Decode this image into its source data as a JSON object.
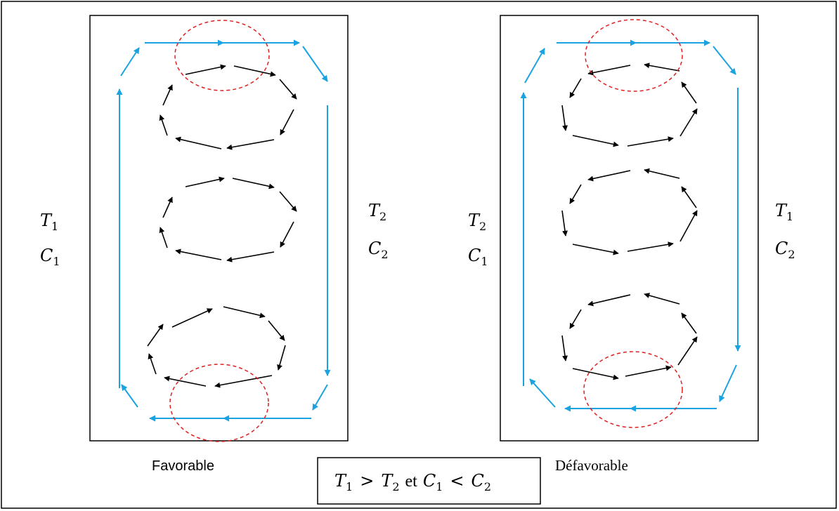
{
  "colors": {
    "circulation": "#1aa3e0",
    "vortex": "#000000",
    "highlight": "#e02020",
    "frame": "#000000"
  },
  "panels": [
    {
      "caption": "Favorable",
      "left_label": {
        "temp": "T",
        "temp_sub": "1",
        "conc": "C",
        "conc_sub": "1"
      },
      "right_label": {
        "temp": "T",
        "temp_sub": "2",
        "conc": "C",
        "conc_sub": "2"
      }
    },
    {
      "caption": "Défavorable",
      "left_label": {
        "temp": "T",
        "temp_sub": "2",
        "conc": "C",
        "conc_sub": "1"
      },
      "right_label": {
        "temp": "T",
        "temp_sub": "1",
        "conc": "C",
        "conc_sub": "2"
      }
    }
  ],
  "condition": {
    "t1": "T",
    "t1_sub": "1",
    "gt": ">",
    "t2": "T",
    "t2_sub": "2",
    "et": "et",
    "c1": "C",
    "c1_sub": "1",
    "lt": "<",
    "c2": "C",
    "c2_sub": "2"
  }
}
